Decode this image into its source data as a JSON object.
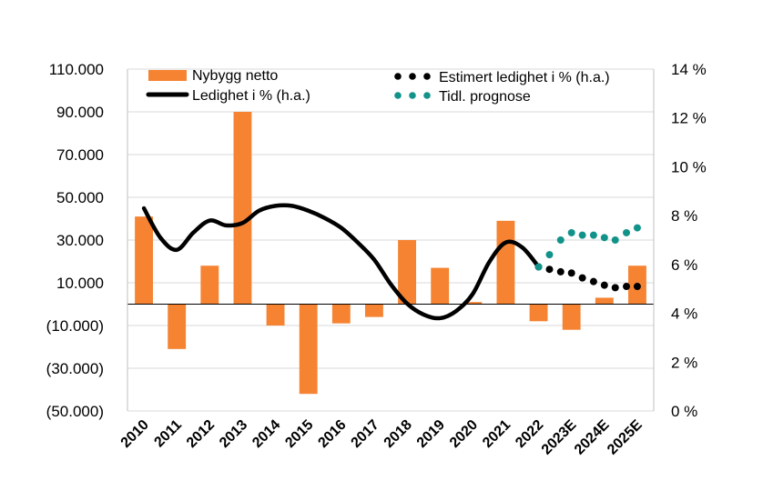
{
  "chart_data": {
    "type": "bar+line",
    "categories": [
      "2010",
      "2011",
      "2012",
      "2013",
      "2014",
      "2015",
      "2016",
      "2017",
      "2018",
      "2019",
      "2020",
      "2021",
      "2022",
      "2023E",
      "2024E",
      "2025E"
    ],
    "series": [
      {
        "name": "Nybygg netto",
        "kind": "bar",
        "axis": "left",
        "color": "#F58332",
        "values": [
          41000,
          -21000,
          18000,
          90000,
          -10000,
          -42000,
          -9000,
          -6000,
          30000,
          17000,
          1000,
          39000,
          -8000,
          -12000,
          3000,
          18000
        ]
      },
      {
        "name": "Ledighet i % (h.a.)",
        "kind": "line",
        "axis": "right",
        "color": "#000000",
        "x": [
          2010,
          2010.5,
          2011,
          2011.5,
          2012,
          2012.5,
          2013,
          2013.5,
          2014,
          2014.5,
          2015,
          2015.5,
          2016,
          2016.5,
          2017,
          2017.5,
          2018,
          2018.5,
          2019,
          2019.5,
          2020,
          2020.5,
          2021,
          2021.5,
          2022
        ],
        "values": [
          8.3,
          7.1,
          6.6,
          7.3,
          7.8,
          7.6,
          7.7,
          8.2,
          8.4,
          8.4,
          8.2,
          7.9,
          7.5,
          6.9,
          6.2,
          5.2,
          4.4,
          3.95,
          3.8,
          4.1,
          4.8,
          6.1,
          6.9,
          6.7,
          5.9
        ]
      },
      {
        "name": "Estimert ledighet i % (h.a.)",
        "kind": "dots",
        "axis": "right",
        "color": "#000000",
        "x": [
          2022,
          2022.33,
          2022.67,
          2023,
          2023.33,
          2023.67,
          2024,
          2024.33,
          2024.67,
          2025
        ],
        "values": [
          5.9,
          5.8,
          5.7,
          5.65,
          5.45,
          5.3,
          5.15,
          5.05,
          5.1,
          5.1
        ]
      },
      {
        "name": "Tidl. prognose",
        "kind": "dots",
        "axis": "right",
        "color": "#12938A",
        "x": [
          2022,
          2022.33,
          2022.67,
          2023,
          2023.33,
          2023.67,
          2024,
          2024.33,
          2024.67,
          2025
        ],
        "values": [
          5.9,
          6.4,
          7.0,
          7.3,
          7.2,
          7.2,
          7.1,
          7.0,
          7.3,
          7.5
        ]
      }
    ],
    "left_axis": {
      "ylim": [
        -50000,
        110000
      ],
      "ticks": [
        110000,
        90000,
        70000,
        50000,
        30000,
        10000,
        -10000,
        -30000,
        -50000
      ],
      "tick_labels": [
        "110.000",
        "90.000",
        "70.000",
        "50.000",
        "30.000",
        "10.000",
        "(10.000)",
        "(30.000)",
        "(50.000)"
      ]
    },
    "right_axis": {
      "ylim": [
        0,
        14
      ],
      "ticks": [
        14,
        12,
        10,
        8,
        6,
        4,
        2,
        0
      ],
      "tick_labels": [
        "14 %",
        "12 %",
        "10 %",
        "8 %",
        "6 %",
        "4 %",
        "2 %",
        "0 %"
      ]
    },
    "grid": true,
    "legend": [
      {
        "label": "Nybygg netto",
        "symbol": "bar"
      },
      {
        "label": "Ledighet i % (h.a.)",
        "symbol": "line"
      },
      {
        "label": "Estimert ledighet i % (h.a.)",
        "symbol": "dots"
      },
      {
        "label": "Tidl. prognose",
        "symbol": "dots"
      }
    ],
    "legend_position": "top"
  }
}
